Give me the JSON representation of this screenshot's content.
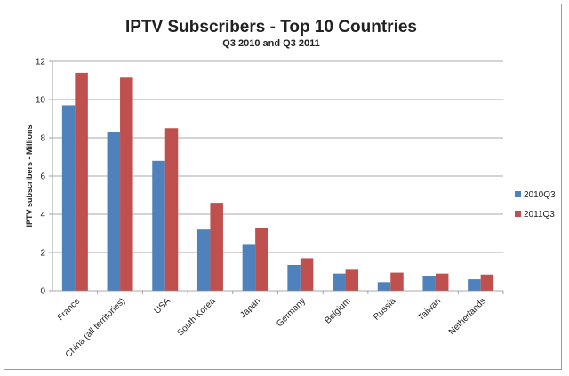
{
  "chart_data": {
    "type": "bar",
    "title": "IPTV Subscribers - Top 10 Countries",
    "subtitle": "Q3 2010 and Q3 2011",
    "xlabel": "",
    "ylabel": "IPTV subscribers - Millions",
    "ylim": [
      0,
      12
    ],
    "yticks": [
      0,
      2,
      4,
      6,
      8,
      10,
      12
    ],
    "grid": true,
    "legend_position": "right",
    "categories": [
      "France",
      "China (all territories)",
      "USA",
      "South Korea",
      "Japan",
      "Germany",
      "Belgium",
      "Russia",
      "Taiwan",
      "Netherlands"
    ],
    "series": [
      {
        "name": "2010Q3",
        "color": "#4F81BD",
        "values": [
          9.7,
          8.3,
          6.8,
          3.2,
          2.4,
          1.35,
          0.9,
          0.45,
          0.75,
          0.6
        ]
      },
      {
        "name": "2011Q3",
        "color": "#C0504D",
        "values": [
          11.4,
          11.15,
          8.5,
          4.6,
          3.3,
          1.7,
          1.1,
          0.95,
          0.9,
          0.85
        ]
      }
    ]
  }
}
